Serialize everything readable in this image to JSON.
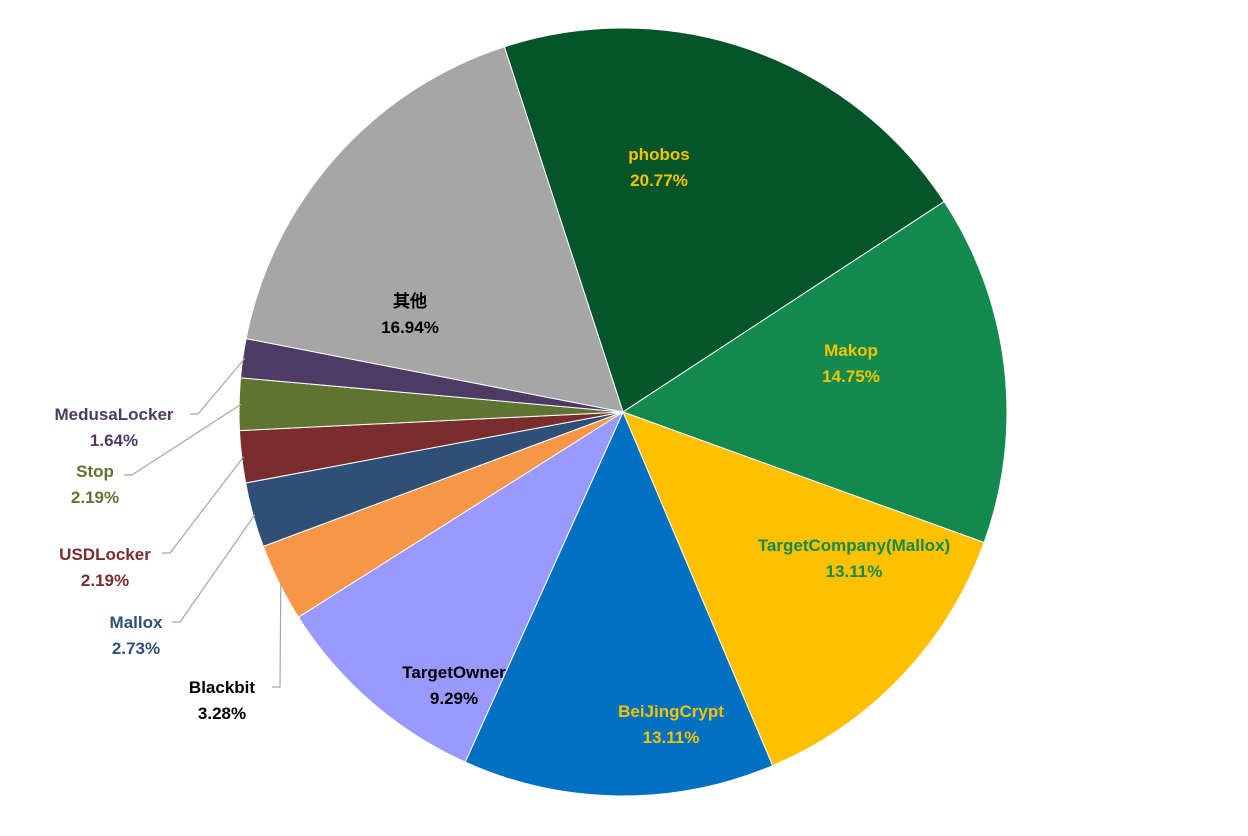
{
  "chart_data": {
    "type": "pie",
    "title": "",
    "legend": "none",
    "slices": [
      {
        "label": "phobos",
        "value": 20.77,
        "display": "20.77%",
        "color": "#06542A",
        "label_color": "#F5C400"
      },
      {
        "label": "Makop",
        "value": 14.75,
        "display": "14.75%",
        "color": "#128A4E",
        "label_color": "#F5C400"
      },
      {
        "label": "TargetCompany(Mallox)",
        "value": 13.11,
        "display": "13.11%",
        "color": "#FFC000",
        "label_color": "#128A4E"
      },
      {
        "label": "BeiJingCrypt",
        "value": 13.11,
        "display": "13.11%",
        "color": "#0070C0",
        "label_color": "#F5C400"
      },
      {
        "label": "TargetOwner",
        "value": 9.29,
        "display": "9.29%",
        "color": "#9999FF",
        "label_color": "#000000"
      },
      {
        "label": "Blackbit",
        "value": 3.28,
        "display": "3.28%",
        "color": "#F79646",
        "label_color": "#000000"
      },
      {
        "label": "Mallox",
        "value": 2.73,
        "display": "2.73%",
        "color": "#2E5077",
        "label_color": "#2E5077"
      },
      {
        "label": "USDLocker",
        "value": 2.19,
        "display": "2.19%",
        "color": "#7B2C2C",
        "label_color": "#7B2C2C"
      },
      {
        "label": "Stop",
        "value": 2.19,
        "display": "2.19%",
        "color": "#5E7430",
        "label_color": "#5E7430"
      },
      {
        "label": "MedusaLocker",
        "value": 1.64,
        "display": "1.64%",
        "color": "#4E3B63",
        "label_color": "#4E3B63"
      },
      {
        "label": "其他",
        "value": 16.94,
        "display": "16.94%",
        "color": "#A6A6A6",
        "label_color": "#000000"
      }
    ]
  }
}
